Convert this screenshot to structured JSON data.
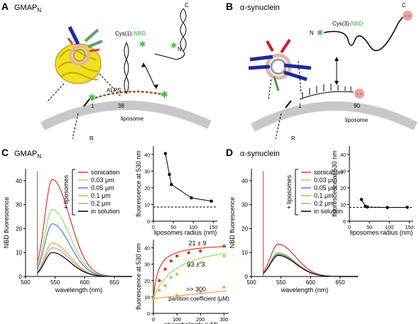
{
  "panels": {
    "A": {
      "letter": "A",
      "title": "GMAP",
      "title_sub": "N",
      "labels": {
        "c": "C",
        "n": "N",
        "cys_pre": "Cys(1)-",
        "cys_nbd": "NBD",
        "alps": "ALPS",
        "res1": "1",
        "res38": "38",
        "liposome": "liposome",
        "r": "R"
      }
    },
    "B": {
      "letter": "B",
      "title": "α-synuclein",
      "labels": {
        "c": "C",
        "n": "N",
        "cys_pre": "Cys(3)-",
        "cys_nbd": "NBD",
        "res1": "1",
        "res90": "90",
        "liposome": "liposome",
        "r": "R"
      }
    },
    "C": {
      "letter": "C",
      "title": "GMAP",
      "title_sub": "N"
    },
    "D": {
      "letter": "D",
      "title": "α-synuclein"
    }
  },
  "legend": {
    "group_label": "+ liposomes",
    "entries": [
      {
        "label": "sonication",
        "color": "#e8322a"
      },
      {
        "label": "0.03 μm",
        "color": "#8fe05a"
      },
      {
        "label": "0.05 μm",
        "color": "#4a7ae0"
      },
      {
        "label": "0.1 μm",
        "color": "#f0a040"
      },
      {
        "label": "0.2 μm",
        "color": "#b0a0a0"
      },
      {
        "label": "in solution",
        "color": "#000000"
      }
    ]
  },
  "chart_data": [
    {
      "id": "spectraC",
      "type": "line",
      "xlabel": "wavelength (nm)",
      "ylabel": "NBD fluorescence",
      "xlim": [
        500,
        680
      ],
      "ylim": [
        0,
        45
      ],
      "xticks": [
        500,
        550,
        600,
        650
      ],
      "yticks": [
        0,
        10,
        20,
        30,
        40
      ],
      "series": [
        {
          "name": "sonication",
          "color": "#e8322a",
          "peak": 40.5
        },
        {
          "name": "0.03 μm",
          "color": "#8fe05a",
          "peak": 28
        },
        {
          "name": "0.05 μm",
          "color": "#4a7ae0",
          "peak": 22
        },
        {
          "name": "0.1 μm",
          "color": "#f0a040",
          "peak": 14
        },
        {
          "name": "0.2 μm",
          "color": "#b0a0a0",
          "peak": 12
        },
        {
          "name": "in solution",
          "color": "#000000",
          "peak": 10
        }
      ]
    },
    {
      "id": "spectraD",
      "type": "line",
      "xlabel": "wavelength (nm)",
      "ylabel": "NBD fluorescence",
      "xlim": [
        500,
        680
      ],
      "ylim": [
        0,
        45
      ],
      "xticks": [
        500,
        550,
        600,
        650
      ],
      "yticks": [
        0,
        10,
        20,
        30,
        40
      ],
      "series": [
        {
          "name": "sonication",
          "color": "#e8322a",
          "peak": 13.5
        },
        {
          "name": "0.03 μm",
          "color": "#8fe05a",
          "peak": 10
        },
        {
          "name": "0.05 μm",
          "color": "#4a7ae0",
          "peak": 9.5
        },
        {
          "name": "0.1 μm",
          "color": "#f0a040",
          "peak": 9.2
        },
        {
          "name": "0.2 μm",
          "color": "#b0a0a0",
          "peak": 9
        },
        {
          "name": "in solution",
          "color": "#000000",
          "peak": 8.8
        }
      ]
    },
    {
      "id": "radiusC",
      "type": "line",
      "xlabel": "liposomes radius (nm)",
      "ylabel": "fluorescence at 530 nm",
      "xlim": [
        0,
        160
      ],
      "ylim": [
        0,
        45
      ],
      "xticks": [
        0,
        50,
        100,
        150
      ],
      "yticks": [
        0,
        10,
        20,
        30,
        40
      ],
      "x": [
        30,
        40,
        45,
        95,
        145
      ],
      "y": [
        40.5,
        28,
        22,
        14,
        12
      ],
      "baseline": 8.5
    },
    {
      "id": "radiusD",
      "type": "line",
      "xlabel": "liposomes radius (nm)",
      "ylabel": "fluorescence at 530 nm",
      "xlim": [
        0,
        160
      ],
      "ylim": [
        0,
        45
      ],
      "xticks": [
        0,
        50,
        100,
        150
      ],
      "yticks": [
        0,
        10,
        20,
        30,
        40
      ],
      "x": [
        30,
        40,
        45,
        95,
        145
      ],
      "y": [
        13,
        9,
        8.5,
        8.2,
        8.3
      ],
      "baseline": 8.2
    },
    {
      "id": "partition",
      "type": "scatter",
      "xlabel": "phospholipids (μM)",
      "ylabel": "fluorescence at 530 nm",
      "annotation": "partition coefficient (μM)",
      "xlim": [
        0,
        320
      ],
      "ylim": [
        0,
        45
      ],
      "xticks": [
        0,
        100,
        200,
        300
      ],
      "yticks": [
        0,
        10,
        20,
        30,
        40
      ],
      "series": [
        {
          "color": "#e8322a",
          "fit_label": "21 ± 9",
          "y0": 9,
          "ymax": 34,
          "k": 21,
          "x": [
            0,
            25,
            50,
            75,
            100,
            150,
            200,
            300
          ],
          "y": [
            9,
            20,
            27,
            32,
            35,
            37,
            38,
            41
          ]
        },
        {
          "color": "#8fe05a",
          "fit_label": "93 ± 3",
          "y0": 9,
          "ymax": 36,
          "k": 93,
          "x": [
            0,
            25,
            50,
            75,
            100,
            150,
            200,
            300
          ],
          "y": [
            9,
            14,
            17,
            22,
            24,
            29,
            31,
            35
          ]
        },
        {
          "color": "#f0a040",
          "fit_label": ">> 300",
          "y0": 9,
          "ymax": 50,
          "k": 3000,
          "x": [
            0,
            100,
            200,
            300
          ],
          "y": [
            9,
            11,
            13,
            16
          ]
        }
      ]
    }
  ]
}
